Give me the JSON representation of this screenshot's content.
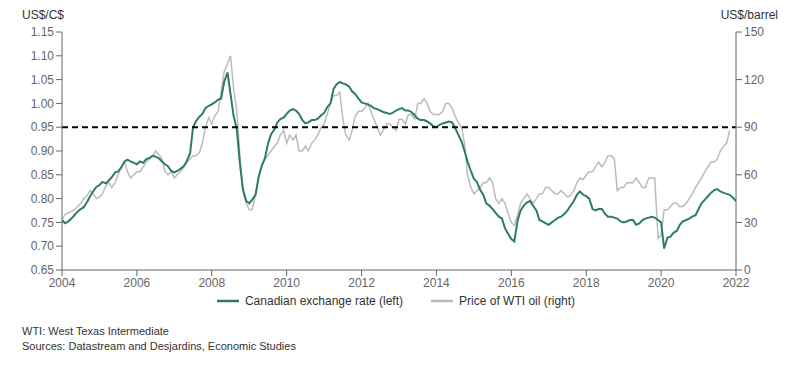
{
  "chart_data": {
    "type": "line",
    "ylabel": "US$/C$",
    "y2label": "US$/barrel",
    "xlim": [
      2004,
      2022
    ],
    "xticks": [
      2004,
      2006,
      2008,
      2010,
      2012,
      2014,
      2016,
      2018,
      2020,
      2022
    ],
    "ylim": [
      0.65,
      1.15
    ],
    "yticks": [
      0.65,
      {
        "value": 0.7,
        "label": "0.70"
      },
      0.75,
      {
        "value": 0.8,
        "label": "0.80"
      },
      0.85,
      {
        "value": 0.9,
        "label": "0.90"
      },
      0.95,
      {
        "value": 1,
        "label": "1.00"
      },
      1.05,
      {
        "value": 1.1,
        "label": "1.10"
      },
      1.15
    ],
    "y2lim": [
      0,
      150
    ],
    "y2ticks": [
      0,
      30,
      60,
      90,
      120,
      150
    ],
    "grid": false,
    "legend": "bottom",
    "hline": {
      "value": 0.95,
      "axis": "y",
      "color": "#000000",
      "line_style": "dashed"
    },
    "footnotes": [
      "WTI: West Texas Intermediate",
      "Sources: Datastream and Desjardins, Economic Studies"
    ],
    "series": [
      {
        "name": "Canadian exchange rate (left)",
        "color": "#2e7d5e",
        "axis": "y",
        "x": [
          2004.0,
          2004.08,
          2004.17,
          2004.25,
          2004.33,
          2004.42,
          2004.5,
          2004.58,
          2004.67,
          2004.75,
          2004.83,
          2004.92,
          2005.0,
          2005.08,
          2005.17,
          2005.25,
          2005.33,
          2005.42,
          2005.5,
          2005.58,
          2005.67,
          2005.75,
          2005.83,
          2005.92,
          2006.0,
          2006.08,
          2006.17,
          2006.25,
          2006.33,
          2006.42,
          2006.5,
          2006.58,
          2006.67,
          2006.75,
          2006.83,
          2006.92,
          2007.0,
          2007.08,
          2007.17,
          2007.25,
          2007.33,
          2007.42,
          2007.5,
          2007.58,
          2007.67,
          2007.75,
          2007.83,
          2007.92,
          2008.0,
          2008.08,
          2008.17,
          2008.25,
          2008.33,
          2008.42,
          2008.5,
          2008.58,
          2008.67,
          2008.75,
          2008.83,
          2008.92,
          2009.0,
          2009.08,
          2009.17,
          2009.25,
          2009.33,
          2009.42,
          2009.5,
          2009.58,
          2009.67,
          2009.75,
          2009.83,
          2009.92,
          2010.0,
          2010.08,
          2010.17,
          2010.25,
          2010.33,
          2010.42,
          2010.5,
          2010.58,
          2010.67,
          2010.75,
          2010.83,
          2010.92,
          2011.0,
          2011.08,
          2011.17,
          2011.25,
          2011.33,
          2011.42,
          2011.5,
          2011.58,
          2011.67,
          2011.75,
          2011.83,
          2011.92,
          2012.0,
          2012.08,
          2012.17,
          2012.25,
          2012.33,
          2012.42,
          2012.5,
          2012.58,
          2012.67,
          2012.75,
          2012.83,
          2012.92,
          2013.0,
          2013.08,
          2013.17,
          2013.25,
          2013.33,
          2013.42,
          2013.5,
          2013.58,
          2013.67,
          2013.75,
          2013.83,
          2013.92,
          2014.0,
          2014.08,
          2014.17,
          2014.25,
          2014.33,
          2014.42,
          2014.5,
          2014.58,
          2014.67,
          2014.75,
          2014.83,
          2014.92,
          2015.0,
          2015.08,
          2015.17,
          2015.25,
          2015.33,
          2015.42,
          2015.5,
          2015.58,
          2015.67,
          2015.75,
          2015.83,
          2015.92,
          2016.0,
          2016.08,
          2016.17,
          2016.25,
          2016.33,
          2016.42,
          2016.5,
          2016.58,
          2016.67,
          2016.75,
          2016.83,
          2016.92,
          2017.0,
          2017.08,
          2017.17,
          2017.25,
          2017.33,
          2017.42,
          2017.5,
          2017.58,
          2017.67,
          2017.75,
          2017.83,
          2017.92,
          2018.0,
          2018.08,
          2018.17,
          2018.25,
          2018.33,
          2018.42,
          2018.5,
          2018.58,
          2018.67,
          2018.75,
          2018.83,
          2018.92,
          2019.0,
          2019.08,
          2019.17,
          2019.25,
          2019.33,
          2019.42,
          2019.5,
          2019.58,
          2019.67,
          2019.75,
          2019.83,
          2019.92,
          2020.0,
          2020.08,
          2020.17,
          2020.25,
          2020.33,
          2020.42,
          2020.5,
          2020.58,
          2020.67,
          2020.75,
          2020.83,
          2020.92,
          2021.0,
          2021.08,
          2021.17,
          2021.25,
          2021.33,
          2021.42,
          2021.5,
          2021.58,
          2021.67,
          2021.75,
          2021.83,
          2021.92,
          2022.0
        ],
        "values": [
          0.755,
          0.748,
          0.752,
          0.758,
          0.765,
          0.773,
          0.778,
          0.782,
          0.793,
          0.805,
          0.815,
          0.825,
          0.828,
          0.835,
          0.832,
          0.838,
          0.845,
          0.855,
          0.857,
          0.865,
          0.878,
          0.882,
          0.878,
          0.875,
          0.872,
          0.878,
          0.875,
          0.883,
          0.885,
          0.89,
          0.888,
          0.885,
          0.878,
          0.872,
          0.868,
          0.858,
          0.855,
          0.858,
          0.863,
          0.868,
          0.878,
          0.895,
          0.95,
          0.963,
          0.972,
          0.978,
          0.99,
          0.995,
          0.998,
          1.002,
          1.008,
          1.01,
          1.045,
          1.065,
          1.02,
          0.975,
          0.945,
          0.875,
          0.82,
          0.795,
          0.79,
          0.798,
          0.808,
          0.845,
          0.868,
          0.885,
          0.915,
          0.935,
          0.945,
          0.96,
          0.967,
          0.97,
          0.978,
          0.985,
          0.988,
          0.985,
          0.978,
          0.965,
          0.958,
          0.96,
          0.965,
          0.965,
          0.968,
          0.975,
          0.98,
          0.992,
          1.0,
          1.03,
          1.04,
          1.045,
          1.042,
          1.04,
          1.035,
          1.025,
          1.02,
          1.01,
          1.002,
          1.0,
          0.998,
          0.995,
          0.99,
          0.988,
          0.985,
          0.982,
          0.98,
          0.978,
          0.98,
          0.985,
          0.988,
          0.99,
          0.985,
          0.985,
          0.982,
          0.975,
          0.968,
          0.965,
          0.965,
          0.962,
          0.958,
          0.952,
          0.95,
          0.955,
          0.958,
          0.96,
          0.962,
          0.96,
          0.948,
          0.935,
          0.92,
          0.9,
          0.878,
          0.858,
          0.842,
          0.835,
          0.818,
          0.808,
          0.79,
          0.785,
          0.778,
          0.77,
          0.762,
          0.758,
          0.738,
          0.725,
          0.715,
          0.71,
          0.755,
          0.775,
          0.785,
          0.792,
          0.795,
          0.785,
          0.775,
          0.755,
          0.752,
          0.748,
          0.745,
          0.75,
          0.755,
          0.76,
          0.762,
          0.768,
          0.775,
          0.785,
          0.795,
          0.808,
          0.815,
          0.808,
          0.805,
          0.8,
          0.778,
          0.775,
          0.778,
          0.778,
          0.768,
          0.762,
          0.762,
          0.76,
          0.758,
          0.752,
          0.75,
          0.752,
          0.755,
          0.755,
          0.745,
          0.748,
          0.755,
          0.758,
          0.76,
          0.762,
          0.76,
          0.755,
          0.75,
          0.695,
          0.718,
          0.72,
          0.728,
          0.732,
          0.745,
          0.752,
          0.755,
          0.758,
          0.762,
          0.765,
          0.778,
          0.79,
          0.798,
          0.805,
          0.812,
          0.818,
          0.82,
          0.815,
          0.812,
          0.81,
          0.808,
          0.802,
          0.795
        ]
      },
      {
        "name": "Price of WTI oil (right)",
        "color": "#bbbbbb",
        "axis": "y2",
        "x": [
          2004.0,
          2004.08,
          2004.17,
          2004.25,
          2004.33,
          2004.42,
          2004.5,
          2004.58,
          2004.67,
          2004.75,
          2004.83,
          2004.92,
          2005.0,
          2005.08,
          2005.17,
          2005.25,
          2005.33,
          2005.42,
          2005.5,
          2005.58,
          2005.67,
          2005.75,
          2005.83,
          2005.92,
          2006.0,
          2006.08,
          2006.17,
          2006.25,
          2006.33,
          2006.42,
          2006.5,
          2006.58,
          2006.67,
          2006.75,
          2006.83,
          2006.92,
          2007.0,
          2007.08,
          2007.17,
          2007.25,
          2007.33,
          2007.42,
          2007.5,
          2007.58,
          2007.67,
          2007.75,
          2007.83,
          2007.92,
          2008.0,
          2008.08,
          2008.17,
          2008.25,
          2008.33,
          2008.42,
          2008.5,
          2008.58,
          2008.67,
          2008.75,
          2008.83,
          2008.92,
          2009.0,
          2009.08,
          2009.17,
          2009.25,
          2009.33,
          2009.42,
          2009.5,
          2009.58,
          2009.67,
          2009.75,
          2009.83,
          2009.92,
          2010.0,
          2010.08,
          2010.17,
          2010.25,
          2010.33,
          2010.42,
          2010.5,
          2010.58,
          2010.67,
          2010.75,
          2010.83,
          2010.92,
          2011.0,
          2011.08,
          2011.17,
          2011.25,
          2011.33,
          2011.42,
          2011.5,
          2011.58,
          2011.67,
          2011.75,
          2011.83,
          2011.92,
          2012.0,
          2012.08,
          2012.17,
          2012.25,
          2012.33,
          2012.42,
          2012.5,
          2012.58,
          2012.67,
          2012.75,
          2012.83,
          2012.92,
          2013.0,
          2013.08,
          2013.17,
          2013.25,
          2013.33,
          2013.42,
          2013.5,
          2013.58,
          2013.67,
          2013.75,
          2013.83,
          2013.92,
          2014.0,
          2014.08,
          2014.17,
          2014.25,
          2014.33,
          2014.42,
          2014.5,
          2014.58,
          2014.67,
          2014.75,
          2014.83,
          2014.92,
          2015.0,
          2015.08,
          2015.17,
          2015.25,
          2015.33,
          2015.42,
          2015.5,
          2015.58,
          2015.67,
          2015.75,
          2015.83,
          2015.92,
          2016.0,
          2016.08,
          2016.17,
          2016.25,
          2016.33,
          2016.42,
          2016.5,
          2016.58,
          2016.67,
          2016.75,
          2016.83,
          2016.92,
          2017.0,
          2017.08,
          2017.17,
          2017.25,
          2017.33,
          2017.42,
          2017.5,
          2017.58,
          2017.67,
          2017.75,
          2017.83,
          2017.92,
          2018.0,
          2018.08,
          2018.17,
          2018.25,
          2018.33,
          2018.42,
          2018.5,
          2018.58,
          2018.67,
          2018.75,
          2018.83,
          2018.92,
          2019.0,
          2019.08,
          2019.17,
          2019.25,
          2019.33,
          2019.42,
          2019.5,
          2019.58,
          2019.67,
          2019.75,
          2019.83,
          2019.92,
          2020.0,
          2020.08,
          2020.17,
          2020.25,
          2020.33,
          2020.42,
          2020.5,
          2020.58,
          2020.67,
          2020.75,
          2020.83,
          2020.92,
          2021.0,
          2021.08,
          2021.17,
          2021.25,
          2021.33,
          2021.42,
          2021.5,
          2021.58,
          2021.67,
          2021.75,
          2021.83
        ],
        "values": [
          32,
          35,
          36,
          37,
          38,
          40,
          42,
          45,
          47,
          50,
          48,
          45,
          46,
          48,
          53,
          55,
          52,
          55,
          60,
          65,
          68,
          62,
          58,
          60,
          62,
          62,
          65,
          68,
          70,
          72,
          75,
          73,
          70,
          62,
          60,
          62,
          58,
          60,
          62,
          65,
          68,
          70,
          72,
          72,
          74,
          80,
          90,
          96,
          92,
          97,
          100,
          112,
          125,
          130,
          135,
          115,
          100,
          72,
          50,
          42,
          38,
          38,
          48,
          58,
          65,
          70,
          72,
          75,
          78,
          80,
          85,
          88,
          80,
          85,
          82,
          85,
          75,
          75,
          78,
          75,
          80,
          82,
          85,
          90,
          92,
          98,
          105,
          110,
          110,
          112,
          95,
          85,
          82,
          88,
          97,
          100,
          100,
          102,
          105,
          100,
          95,
          90,
          85,
          88,
          92,
          92,
          90,
          88,
          95,
          95,
          92,
          98,
          98,
          95,
          105,
          105,
          108,
          105,
          100,
          98,
          98,
          98,
          100,
          105,
          105,
          102,
          97,
          93,
          90,
          80,
          60,
          52,
          48,
          50,
          52,
          55,
          55,
          58,
          55,
          45,
          42,
          45,
          42,
          35,
          30,
          28,
          35,
          42,
          45,
          48,
          45,
          42,
          45,
          48,
          48,
          52,
          52,
          50,
          48,
          48,
          50,
          48,
          46,
          47,
          50,
          55,
          58,
          57,
          60,
          62,
          62,
          65,
          68,
          65,
          68,
          72,
          72,
          70,
          50,
          52,
          52,
          55,
          55,
          55,
          58,
          55,
          52,
          52,
          58,
          58,
          58,
          20,
          22,
          38,
          38,
          40,
          42,
          42,
          40,
          40,
          42,
          45,
          48,
          52,
          55,
          58,
          62,
          65,
          68,
          68,
          70,
          75,
          78,
          80,
          88
        ]
      }
    ]
  }
}
